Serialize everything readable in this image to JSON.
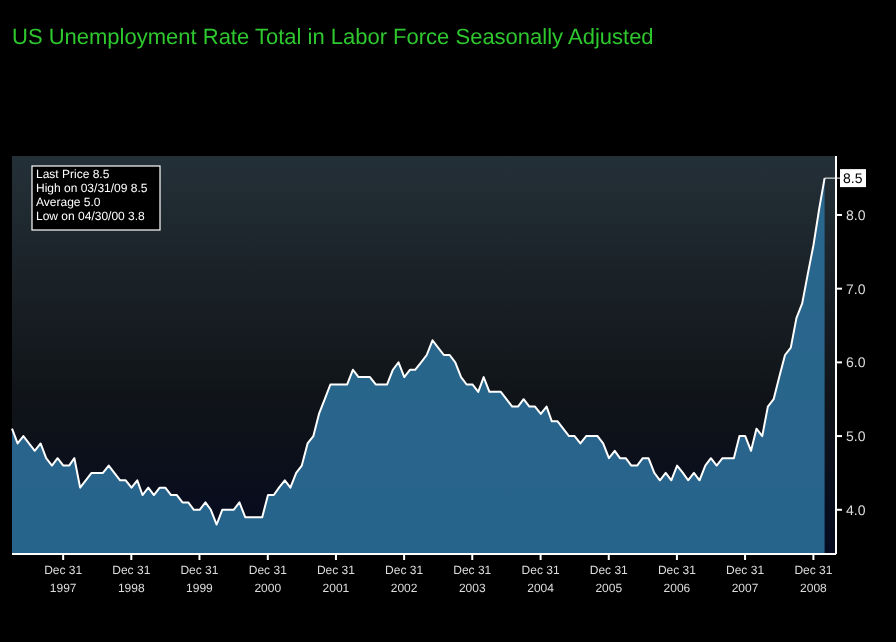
{
  "chart_data": {
    "type": "area",
    "title": "US Unemployment Rate Total in Labor Force Seasonally Adjusted",
    "annotations": [
      "Last Price 8.5",
      "High on 03/31/09 8.5",
      "Average 5.0",
      "Low on 04/30/00 3.8",
      {
        "text": "8.5",
        "x": "2009-03",
        "y": 8.5
      }
    ],
    "xlim": [
      "1997-04",
      "2009-05"
    ],
    "xticks": [
      {
        "value": "1997-12-31",
        "label": "Dec 31 1997"
      },
      {
        "value": "1998-12-31",
        "label": "Dec 31 1998"
      },
      {
        "value": "1999-12-31",
        "label": "Dec 31 1999"
      },
      {
        "value": "2000-12-31",
        "label": "Dec 31 2000"
      },
      {
        "value": "2001-12-31",
        "label": "Dec 31 2001"
      },
      {
        "value": "2002-12-31",
        "label": "Dec 31 2002"
      },
      {
        "value": "2003-12-31",
        "label": "Dec 31 2003"
      },
      {
        "value": "2004-12-31",
        "label": "Dec 31 2004"
      },
      {
        "value": "2005-12-31",
        "label": "Dec 31 2005"
      },
      {
        "value": "2006-12-31",
        "label": "Dec 31 2006"
      },
      {
        "value": "2007-12-31",
        "label": "Dec 31 2007"
      },
      {
        "value": "2008-12-31",
        "label": "Dec 31 2008"
      }
    ],
    "ylim": [
      3.4,
      8.8
    ],
    "yticks": [
      {
        "value": 4,
        "label": "4.0"
      },
      {
        "value": 5,
        "label": "5.0"
      },
      {
        "value": 6,
        "label": "6.0"
      },
      {
        "value": 7,
        "label": "7.0"
      },
      {
        "value": 8,
        "label": "8.0"
      }
    ],
    "x": [
      "1997-04",
      "1997-05",
      "1997-06",
      "1997-07",
      "1997-08",
      "1997-09",
      "1997-10",
      "1997-11",
      "1997-12",
      "1998-01",
      "1998-02",
      "1998-03",
      "1998-04",
      "1998-05",
      "1998-06",
      "1998-07",
      "1998-08",
      "1998-09",
      "1998-10",
      "1998-11",
      "1998-12",
      "1999-01",
      "1999-02",
      "1999-03",
      "1999-04",
      "1999-05",
      "1999-06",
      "1999-07",
      "1999-08",
      "1999-09",
      "1999-10",
      "1999-11",
      "1999-12",
      "2000-01",
      "2000-02",
      "2000-03",
      "2000-04",
      "2000-05",
      "2000-06",
      "2000-07",
      "2000-08",
      "2000-09",
      "2000-10",
      "2000-11",
      "2000-12",
      "2001-01",
      "2001-02",
      "2001-03",
      "2001-04",
      "2001-05",
      "2001-06",
      "2001-07",
      "2001-08",
      "2001-09",
      "2001-10",
      "2001-11",
      "2001-12",
      "2002-01",
      "2002-02",
      "2002-03",
      "2002-04",
      "2002-05",
      "2002-06",
      "2002-07",
      "2002-08",
      "2002-09",
      "2002-10",
      "2002-11",
      "2002-12",
      "2003-01",
      "2003-02",
      "2003-03",
      "2003-04",
      "2003-05",
      "2003-06",
      "2003-07",
      "2003-08",
      "2003-09",
      "2003-10",
      "2003-11",
      "2003-12",
      "2004-01",
      "2004-02",
      "2004-03",
      "2004-04",
      "2004-05",
      "2004-06",
      "2004-07",
      "2004-08",
      "2004-09",
      "2004-10",
      "2004-11",
      "2004-12",
      "2005-01",
      "2005-02",
      "2005-03",
      "2005-04",
      "2005-05",
      "2005-06",
      "2005-07",
      "2005-08",
      "2005-09",
      "2005-10",
      "2005-11",
      "2005-12",
      "2006-01",
      "2006-02",
      "2006-03",
      "2006-04",
      "2006-05",
      "2006-06",
      "2006-07",
      "2006-08",
      "2006-09",
      "2006-10",
      "2006-11",
      "2006-12",
      "2007-01",
      "2007-02",
      "2007-03",
      "2007-04",
      "2007-05",
      "2007-06",
      "2007-07",
      "2007-08",
      "2007-09",
      "2007-10",
      "2007-11",
      "2007-12",
      "2008-01",
      "2008-02",
      "2008-03",
      "2008-04",
      "2008-05",
      "2008-06",
      "2008-07",
      "2008-08",
      "2008-09",
      "2008-10",
      "2008-11",
      "2008-12",
      "2009-01",
      "2009-02",
      "2009-03"
    ],
    "series": [
      {
        "color": "#2b6e98",
        "values": [
          5.1,
          4.9,
          5.0,
          4.9,
          4.8,
          4.9,
          4.7,
          4.6,
          4.7,
          4.6,
          4.6,
          4.7,
          4.3,
          4.4,
          4.5,
          4.5,
          4.5,
          4.6,
          4.5,
          4.4,
          4.4,
          4.3,
          4.4,
          4.2,
          4.3,
          4.2,
          4.3,
          4.3,
          4.2,
          4.2,
          4.1,
          4.1,
          4.0,
          4.0,
          4.1,
          4.0,
          3.8,
          4.0,
          4.0,
          4.0,
          4.1,
          3.9,
          3.9,
          3.9,
          3.9,
          4.2,
          4.2,
          4.3,
          4.4,
          4.3,
          4.5,
          4.6,
          4.9,
          5.0,
          5.3,
          5.5,
          5.7,
          5.7,
          5.7,
          5.7,
          5.9,
          5.8,
          5.8,
          5.8,
          5.7,
          5.7,
          5.7,
          5.9,
          6.0,
          5.8,
          5.9,
          5.9,
          6.0,
          6.1,
          6.3,
          6.2,
          6.1,
          6.1,
          6.0,
          5.8,
          5.7,
          5.7,
          5.6,
          5.8,
          5.6,
          5.6,
          5.6,
          5.5,
          5.4,
          5.4,
          5.5,
          5.4,
          5.4,
          5.3,
          5.4,
          5.2,
          5.2,
          5.1,
          5.0,
          5.0,
          4.9,
          5.0,
          5.0,
          5.0,
          4.9,
          4.7,
          4.8,
          4.7,
          4.7,
          4.6,
          4.6,
          4.7,
          4.7,
          4.5,
          4.4,
          4.5,
          4.4,
          4.6,
          4.5,
          4.4,
          4.5,
          4.4,
          4.6,
          4.7,
          4.6,
          4.7,
          4.7,
          4.7,
          5.0,
          5.0,
          4.8,
          5.1,
          5.0,
          5.4,
          5.5,
          5.8,
          6.1,
          6.2,
          6.6,
          6.8,
          7.2,
          7.6,
          8.1,
          8.5
        ]
      }
    ]
  }
}
